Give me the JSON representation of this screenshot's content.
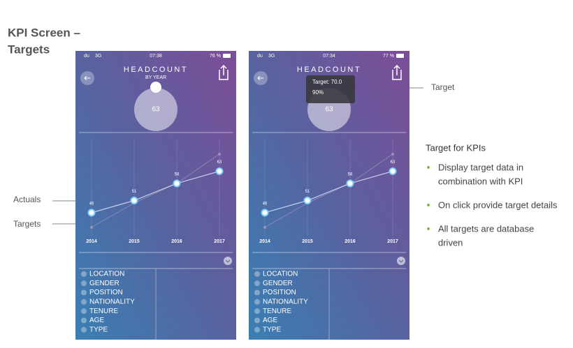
{
  "title_lines": [
    "KPI Screen –",
    "Targets"
  ],
  "annotations": {
    "actuals": "Actuals",
    "targets": "Targets",
    "target": "Target"
  },
  "notes": {
    "heading": "Target for KPIs",
    "bullets": [
      [
        "Display target data in",
        "combination with KPI"
      ],
      [
        "On click provide target details"
      ],
      [
        "All targets are database",
        "driven"
      ]
    ]
  },
  "screens": [
    {
      "status": {
        "carrier": "du",
        "network": "3G",
        "time": "07:38",
        "battery": "76 %"
      },
      "header": "HEADCOUNT",
      "subheader": "BY YEAR",
      "kpi": "63",
      "chart": {
        "type": "line",
        "categories": [
          "2014",
          "2015",
          "2016",
          "2017"
        ],
        "ylim": [
          36,
          76
        ],
        "actuals": {
          "values": [
            46,
            51,
            58,
            63
          ],
          "color": "#dfeaff"
        },
        "targets": {
          "values": [
            40,
            50,
            58,
            70
          ],
          "color": "#9c8fb8"
        }
      },
      "filters": [
        "LOCATION",
        "GENDER",
        "POSITION",
        "NATIONALITY",
        "TENURE",
        "AGE",
        "TYPE"
      ]
    },
    {
      "status": {
        "carrier": "du",
        "network": "3G",
        "time": "07:34",
        "battery": "77 %"
      },
      "header": "HEADCOUNT",
      "kpi": "63",
      "tooltip": {
        "target": "Target: 70.0",
        "percent": "90%"
      },
      "chart": {
        "type": "line",
        "categories": [
          "2014",
          "2015",
          "2016",
          "2017"
        ],
        "ylim": [
          36,
          76
        ],
        "actuals": {
          "values": [
            46,
            51,
            58,
            63
          ],
          "color": "#dfeaff"
        },
        "targets": {
          "values": [
            40,
            50,
            58,
            70
          ],
          "color": "#9c8fb8"
        }
      },
      "filters": [
        "LOCATION",
        "GENDER",
        "POSITION",
        "NATIONALITY",
        "TENURE",
        "AGE",
        "TYPE"
      ]
    }
  ]
}
